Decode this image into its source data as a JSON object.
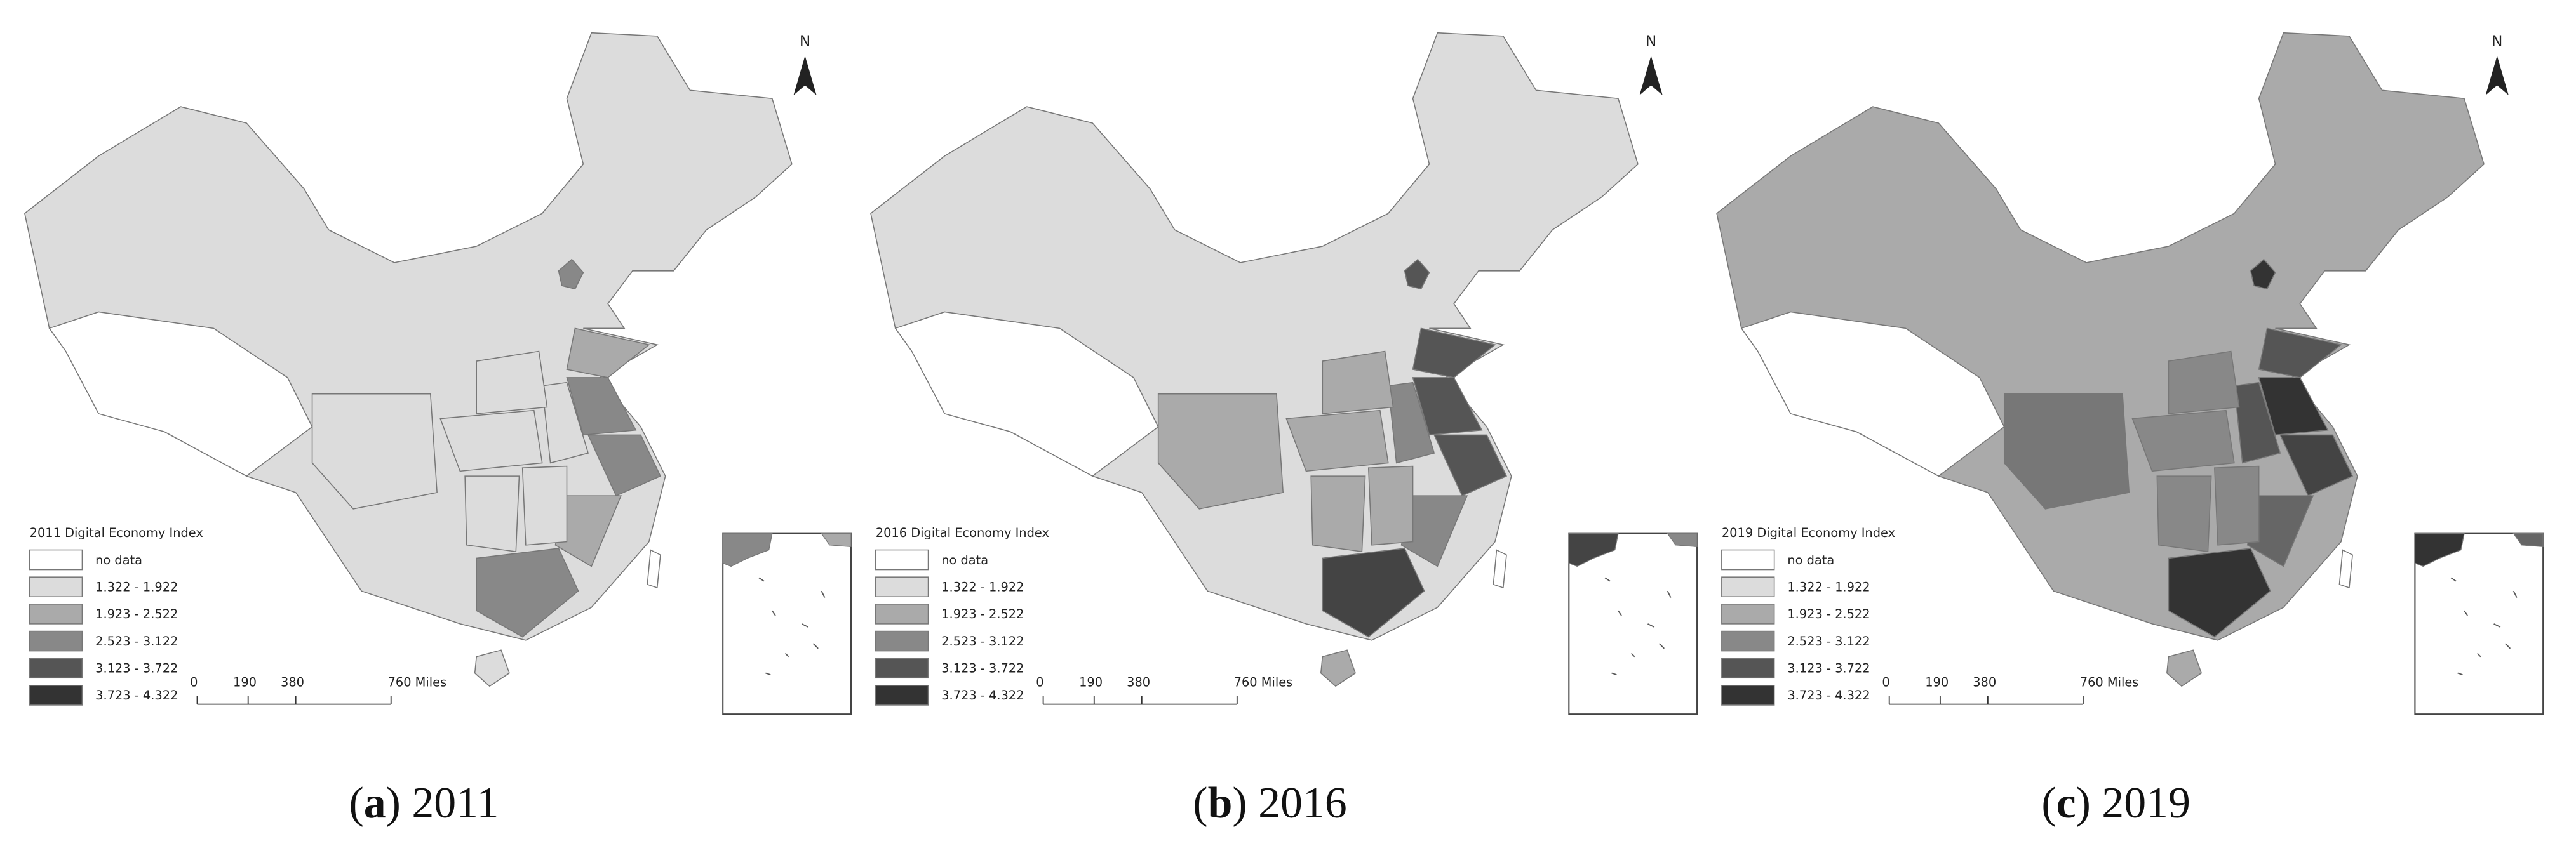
{
  "panels": [
    {
      "north": "N",
      "legend_title": "2011 Digital Economy Index",
      "legend": [
        {
          "label": "no data",
          "color": "#ffffff"
        },
        {
          "label": "1.322 - 1.922",
          "color": "#dcdcdc"
        },
        {
          "label": "1.923 - 2.522",
          "color": "#aaaaaa"
        },
        {
          "label": "2.523 - 3.122",
          "color": "#888888"
        },
        {
          "label": "3.123 - 3.722",
          "color": "#555555"
        },
        {
          "label": "3.723 - 4.322",
          "color": "#333333"
        }
      ],
      "scale_labels": [
        "0",
        "190",
        "380",
        "760 Miles"
      ],
      "region_colors": [
        "#dcdcdc",
        "#ffffff",
        "#888888",
        "#aaaaaa",
        "#888888",
        "#888888",
        "#dcdcdc",
        "#aaaaaa",
        "#888888",
        "#dcdcdc",
        "#dcdcdc",
        "#dcdcdc",
        "#dcdcdc",
        "#dcdcdc",
        "#dcdcdc",
        "#ffffff"
      ],
      "caption": {
        "open": "(",
        "letter": "a",
        "rest": ") 2011"
      }
    },
    {
      "north": "N",
      "legend_title": "2016 Digital Economy Index",
      "legend": [
        {
          "label": "no data",
          "color": "#ffffff"
        },
        {
          "label": "1.322 - 1.922",
          "color": "#dcdcdc"
        },
        {
          "label": "1.923 - 2.522",
          "color": "#aaaaaa"
        },
        {
          "label": "2.523 - 3.122",
          "color": "#888888"
        },
        {
          "label": "3.123 - 3.722",
          "color": "#555555"
        },
        {
          "label": "3.723 - 4.322",
          "color": "#333333"
        }
      ],
      "scale_labels": [
        "0",
        "190",
        "380",
        "760 Miles"
      ],
      "region_colors": [
        "#dcdcdc",
        "#ffffff",
        "#555555",
        "#555555",
        "#555555",
        "#555555",
        "#888888",
        "#888888",
        "#444444",
        "#aaaaaa",
        "#aaaaaa",
        "#aaaaaa",
        "#aaaaaa",
        "#aaaaaa",
        "#aaaaaa",
        "#ffffff"
      ],
      "caption": {
        "open": "(",
        "letter": "b",
        "rest": ") 2016"
      }
    },
    {
      "north": "N",
      "legend_title": "2019 Digital Economy Index",
      "legend": [
        {
          "label": "no data",
          "color": "#ffffff"
        },
        {
          "label": "1.322 - 1.922",
          "color": "#dcdcdc"
        },
        {
          "label": "1.923 - 2.522",
          "color": "#aaaaaa"
        },
        {
          "label": "2.523 - 3.122",
          "color": "#888888"
        },
        {
          "label": "3.123 - 3.722",
          "color": "#555555"
        },
        {
          "label": "3.723 - 4.322",
          "color": "#333333"
        }
      ],
      "scale_labels": [
        "0",
        "190",
        "380",
        "760 Miles"
      ],
      "region_colors": [
        "#aaaaaa",
        "#ffffff",
        "#333333",
        "#555555",
        "#333333",
        "#444444",
        "#555555",
        "#666666",
        "#333333",
        "#888888",
        "#888888",
        "#888888",
        "#888888",
        "#777777",
        "#aaaaaa",
        "#ffffff"
      ],
      "caption": {
        "open": "(",
        "letter": "c",
        "rest": ") 2019"
      }
    }
  ]
}
